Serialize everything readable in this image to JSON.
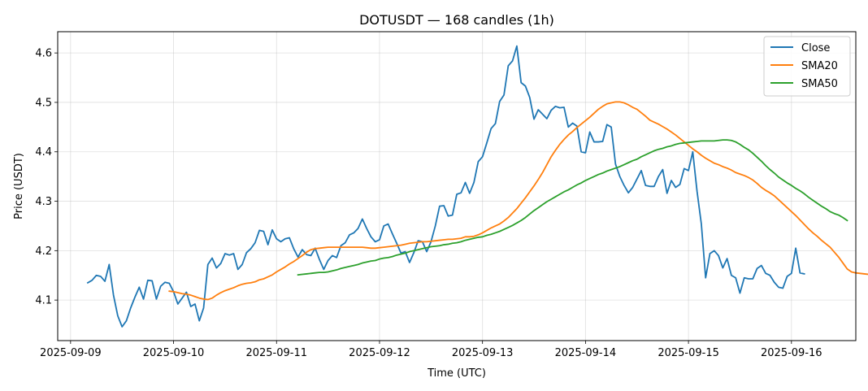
{
  "chart_data": {
    "type": "line",
    "title": "DOTUSDT — 168 candles (1h)",
    "xlabel": "Time (UTC)",
    "ylabel": "Price (USDT)",
    "xlim": [
      -7,
      179
    ],
    "ylim": [
      4.018,
      4.643
    ],
    "grid": true,
    "legend_position": "top-right",
    "x_ticks": [
      {
        "hour": -4,
        "label": "2025-09-09"
      },
      {
        "hour": 20,
        "label": "2025-09-10"
      },
      {
        "hour": 44,
        "label": "2025-09-11"
      },
      {
        "hour": 68,
        "label": "2025-09-12"
      },
      {
        "hour": 92,
        "label": "2025-09-13"
      },
      {
        "hour": 116,
        "label": "2025-09-14"
      },
      {
        "hour": 140,
        "label": "2025-09-15"
      },
      {
        "hour": 164,
        "label": "2025-09-16"
      }
    ],
    "y_ticks": [
      4.1,
      4.2,
      4.3,
      4.4,
      4.5,
      4.6
    ],
    "series": [
      {
        "name": "Close",
        "color": "#1f77b4",
        "start_index": 0,
        "values": [
          4.135,
          4.14,
          4.15,
          4.148,
          4.138,
          4.172,
          4.11,
          4.068,
          4.046,
          4.058,
          4.084,
          4.106,
          4.126,
          4.102,
          4.14,
          4.139,
          4.102,
          4.128,
          4.136,
          4.134,
          4.117,
          4.092,
          4.104,
          4.116,
          4.087,
          4.092,
          4.058,
          4.084,
          4.172,
          4.185,
          4.165,
          4.174,
          4.194,
          4.191,
          4.194,
          4.162,
          4.172,
          4.196,
          4.204,
          4.216,
          4.241,
          4.239,
          4.212,
          4.242,
          4.224,
          4.218,
          4.224,
          4.226,
          4.204,
          4.187,
          4.202,
          4.192,
          4.19,
          4.205,
          4.182,
          4.162,
          4.18,
          4.19,
          4.186,
          4.21,
          4.216,
          4.232,
          4.236,
          4.245,
          4.264,
          4.245,
          4.228,
          4.218,
          4.222,
          4.25,
          4.254,
          4.234,
          4.215,
          4.195,
          4.198,
          4.176,
          4.196,
          4.22,
          4.218,
          4.198,
          4.218,
          4.25,
          4.29,
          4.291,
          4.27,
          4.272,
          4.314,
          4.317,
          4.338,
          4.316,
          4.338,
          4.38,
          4.39,
          4.418,
          4.447,
          4.457,
          4.502,
          4.515,
          4.574,
          4.584,
          4.614,
          4.54,
          4.533,
          4.51,
          4.466,
          4.485,
          4.476,
          4.467,
          4.484,
          4.492,
          4.489,
          4.49,
          4.45,
          4.458,
          4.452,
          4.4,
          4.398,
          4.44,
          4.42,
          4.42,
          4.421,
          4.455,
          4.45,
          4.375,
          4.35,
          4.332,
          4.317,
          4.328,
          4.345,
          4.362,
          4.332,
          4.33,
          4.33,
          4.35,
          4.364,
          4.316,
          4.342,
          4.328,
          4.334,
          4.366,
          4.362,
          4.4,
          4.32,
          4.254,
          4.145,
          4.194,
          4.2,
          4.19,
          4.165,
          4.184,
          4.15,
          4.145,
          4.114,
          4.145,
          4.143,
          4.143,
          4.164,
          4.17,
          4.154,
          4.15,
          4.136,
          4.126,
          4.124,
          4.148,
          4.154,
          4.205,
          4.155,
          4.153
        ]
      },
      {
        "name": "SMA20",
        "color": "#ff7f0e",
        "start_index": 19,
        "values": [
          4.118,
          4.117,
          4.115,
          4.113,
          4.112,
          4.11,
          4.107,
          4.104,
          4.102,
          4.101,
          4.104,
          4.11,
          4.115,
          4.119,
          4.122,
          4.125,
          4.129,
          4.132,
          4.134,
          4.135,
          4.137,
          4.141,
          4.143,
          4.147,
          4.151,
          4.157,
          4.162,
          4.167,
          4.173,
          4.178,
          4.184,
          4.19,
          4.197,
          4.202,
          4.204,
          4.205,
          4.206,
          4.207,
          4.207,
          4.207,
          4.207,
          4.207,
          4.207,
          4.207,
          4.207,
          4.207,
          4.206,
          4.205,
          4.205,
          4.206,
          4.207,
          4.208,
          4.209,
          4.21,
          4.211,
          4.213,
          4.215,
          4.216,
          4.217,
          4.218,
          4.218,
          4.219,
          4.22,
          4.221,
          4.222,
          4.223,
          4.223,
          4.224,
          4.225,
          4.228,
          4.228,
          4.229,
          4.232,
          4.236,
          4.241,
          4.246,
          4.25,
          4.254,
          4.26,
          4.267,
          4.276,
          4.285,
          4.296,
          4.307,
          4.319,
          4.331,
          4.344,
          4.358,
          4.374,
          4.39,
          4.403,
          4.415,
          4.425,
          4.434,
          4.441,
          4.449,
          4.456,
          4.463,
          4.47,
          4.478,
          4.486,
          4.492,
          4.497,
          4.499,
          4.501,
          4.501,
          4.499,
          4.495,
          4.49,
          4.486,
          4.479,
          4.472,
          4.464,
          4.46,
          4.456,
          4.451,
          4.446,
          4.44,
          4.434,
          4.427,
          4.42,
          4.413,
          4.406,
          4.4,
          4.393,
          4.387,
          4.382,
          4.377,
          4.374,
          4.37,
          4.367,
          4.363,
          4.358,
          4.355,
          4.352,
          4.348,
          4.343,
          4.336,
          4.328,
          4.322,
          4.317,
          4.311,
          4.303,
          4.295,
          4.287,
          4.279,
          4.271,
          4.262,
          4.253,
          4.244,
          4.236,
          4.229,
          4.221,
          4.214,
          4.207,
          4.197,
          4.187,
          4.175,
          4.163,
          4.157,
          4.155,
          4.154,
          4.153,
          4.152
        ]
      },
      {
        "name": "SMA50",
        "color": "#2ca02c",
        "start_index": 49,
        "values": [
          4.151,
          4.152,
          4.153,
          4.154,
          4.155,
          4.156,
          4.156,
          4.157,
          4.159,
          4.161,
          4.164,
          4.166,
          4.168,
          4.17,
          4.172,
          4.175,
          4.177,
          4.179,
          4.18,
          4.183,
          4.185,
          4.186,
          4.188,
          4.191,
          4.193,
          4.195,
          4.198,
          4.2,
          4.202,
          4.204,
          4.206,
          4.208,
          4.209,
          4.21,
          4.212,
          4.213,
          4.215,
          4.216,
          4.218,
          4.221,
          4.223,
          4.225,
          4.227,
          4.228,
          4.231,
          4.233,
          4.236,
          4.239,
          4.243,
          4.247,
          4.251,
          4.256,
          4.261,
          4.267,
          4.274,
          4.281,
          4.287,
          4.293,
          4.299,
          4.304,
          4.309,
          4.314,
          4.319,
          4.323,
          4.328,
          4.333,
          4.337,
          4.342,
          4.346,
          4.35,
          4.354,
          4.357,
          4.361,
          4.364,
          4.367,
          4.37,
          4.374,
          4.378,
          4.382,
          4.385,
          4.39,
          4.394,
          4.398,
          4.402,
          4.405,
          4.407,
          4.41,
          4.412,
          4.415,
          4.417,
          4.418,
          4.419,
          4.42,
          4.421,
          4.422,
          4.422,
          4.422,
          4.422,
          4.423,
          4.424,
          4.424,
          4.423,
          4.42,
          4.415,
          4.409,
          4.404,
          4.397,
          4.389,
          4.381,
          4.372,
          4.364,
          4.357,
          4.349,
          4.343,
          4.337,
          4.332,
          4.326,
          4.321,
          4.315,
          4.308,
          4.302,
          4.296,
          4.29,
          4.285,
          4.279,
          4.275,
          4.272,
          4.267,
          4.261
        ]
      }
    ]
  }
}
